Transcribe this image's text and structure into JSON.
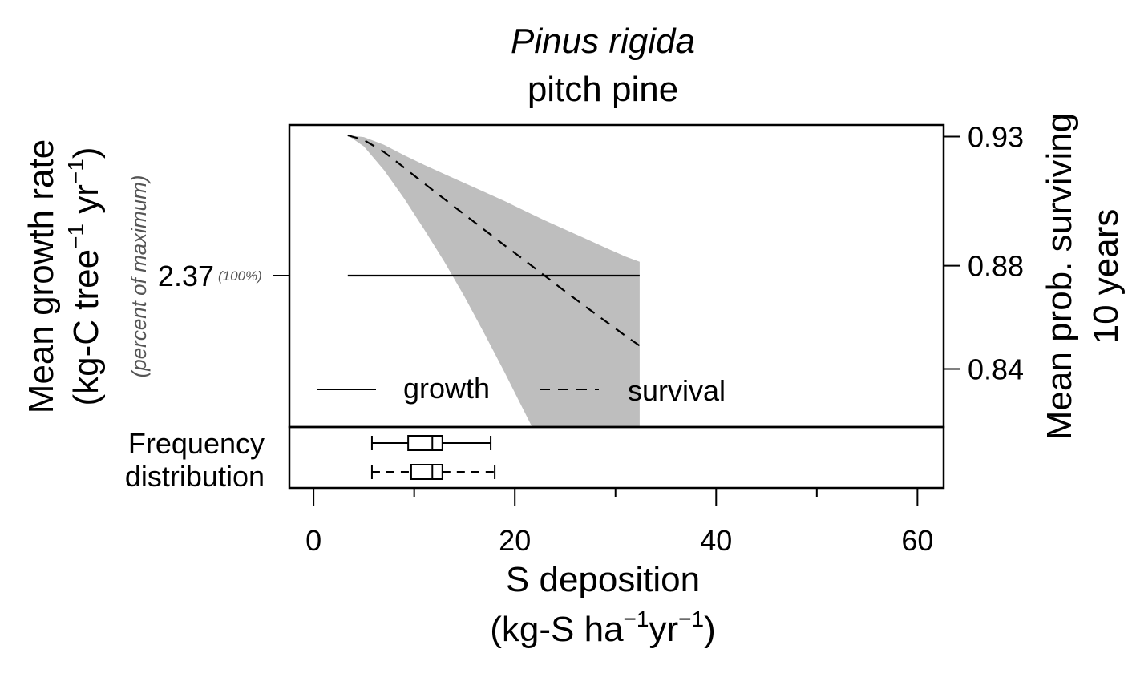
{
  "chart_data": {
    "type": "line",
    "title": "Pinus rigida",
    "subtitle": "pitch pine",
    "xlabel": "S deposition",
    "xlabel_units": {
      "base": "(kg-S ha",
      "exp1": "−1",
      "mid": "yr",
      "exp2": "−1",
      "end": ")"
    },
    "xlim": [
      -2.4,
      62.6
    ],
    "x_ticks": [
      0,
      20,
      40,
      60
    ],
    "x_ticks_minor": [
      10,
      30,
      50
    ],
    "left_axis": {
      "label": "Mean growth rate",
      "units": {
        "base": "(kg-C tree",
        "exp1": "−1",
        "mid": " yr",
        "exp2": "−1",
        "end": ")"
      },
      "sublabel": "(percent of maximum)",
      "tick_value": "2.37",
      "tick_percent": "(100%)"
    },
    "right_axis": {
      "label_line1": "Mean prob. surviving",
      "label_line2": "10 years",
      "ticks": [
        0.84,
        0.88,
        0.93
      ],
      "ylim": [
        0.8175,
        0.9345
      ]
    },
    "series": [
      {
        "name": "growth",
        "style": "solid",
        "x": [
          3.4,
          32.4
        ],
        "y_percent_of_max": [
          100,
          100
        ]
      },
      {
        "name": "survival",
        "style": "dashed",
        "x": [
          3.4,
          5,
          7,
          9,
          11,
          13,
          15,
          17,
          19,
          21,
          23,
          25,
          27,
          29,
          31,
          32.4
        ],
        "y": [
          0.9305,
          0.9287,
          0.924,
          0.918,
          0.9118,
          0.9058,
          0.8998,
          0.8938,
          0.8878,
          0.882,
          0.876,
          0.87,
          0.8642,
          0.8585,
          0.8528,
          0.849
        ],
        "ci_upper": [
          0.9305,
          0.9298,
          0.9268,
          0.9228,
          0.919,
          0.9155,
          0.912,
          0.9085,
          0.905,
          0.9012,
          0.8975,
          0.894,
          0.8905,
          0.887,
          0.8835,
          0.8815
        ],
        "ci_lower": [
          0.9305,
          0.9262,
          0.917,
          0.906,
          0.894,
          0.8815,
          0.868,
          0.8535,
          0.8385,
          0.823,
          0.8075,
          0.792,
          0.776,
          0.76,
          0.744,
          0.733
        ]
      }
    ],
    "legend": {
      "position": "bottom-left",
      "entries": [
        "growth",
        "survival"
      ]
    },
    "frequency_panel": {
      "label_line1": "Frequency",
      "label_line2": "distribution",
      "boxes": [
        {
          "style": "solid",
          "whisker_low": 5.8,
          "q1": 9.4,
          "median": 11.8,
          "q3": 12.8,
          "whisker_high": 17.6
        },
        {
          "style": "dashed",
          "whisker_low": 5.8,
          "q1": 9.7,
          "median": 11.8,
          "q3": 12.8,
          "whisker_high": 18.0
        }
      ]
    }
  }
}
